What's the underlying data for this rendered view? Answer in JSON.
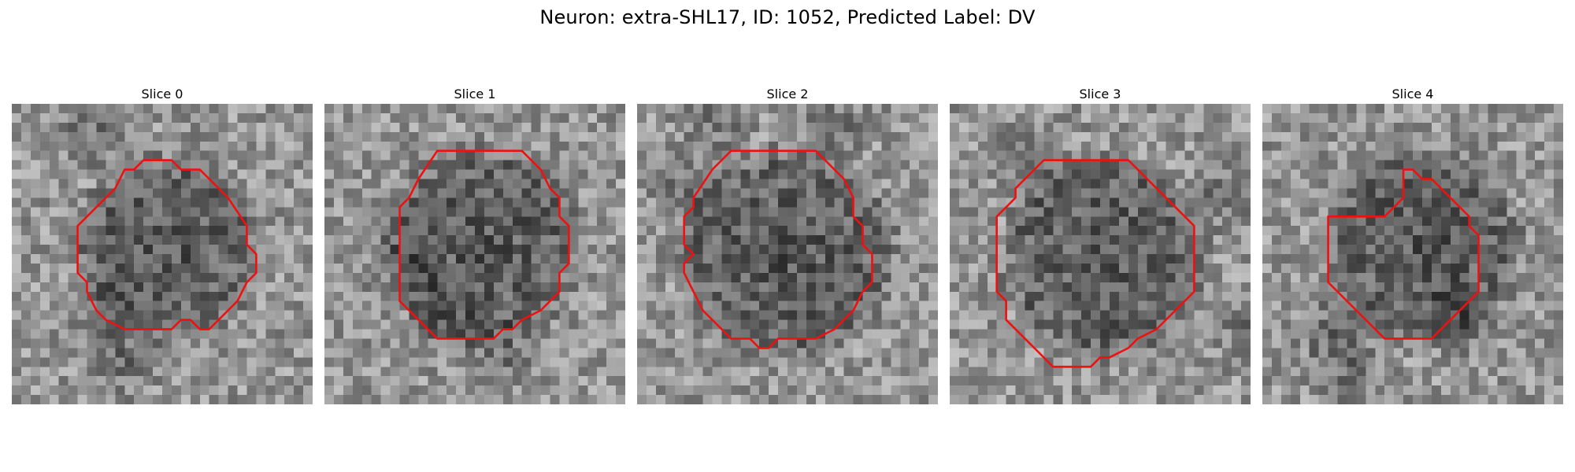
{
  "figure": {
    "title": "Neuron: extra-SHL17, ID: 1052, Predicted Label: DV"
  },
  "panels": [
    {
      "label": "Slice 0",
      "contour_color": "#ee1111",
      "seed": 11
    },
    {
      "label": "Slice 1",
      "contour_color": "#ee1111",
      "seed": 23
    },
    {
      "label": "Slice 2",
      "contour_color": "#ee1111",
      "seed": 37
    },
    {
      "label": "Slice 3",
      "contour_color": "#ee1111",
      "seed": 41
    },
    {
      "label": "Slice 4",
      "contour_color": "#ee1111",
      "seed": 59
    }
  ]
}
